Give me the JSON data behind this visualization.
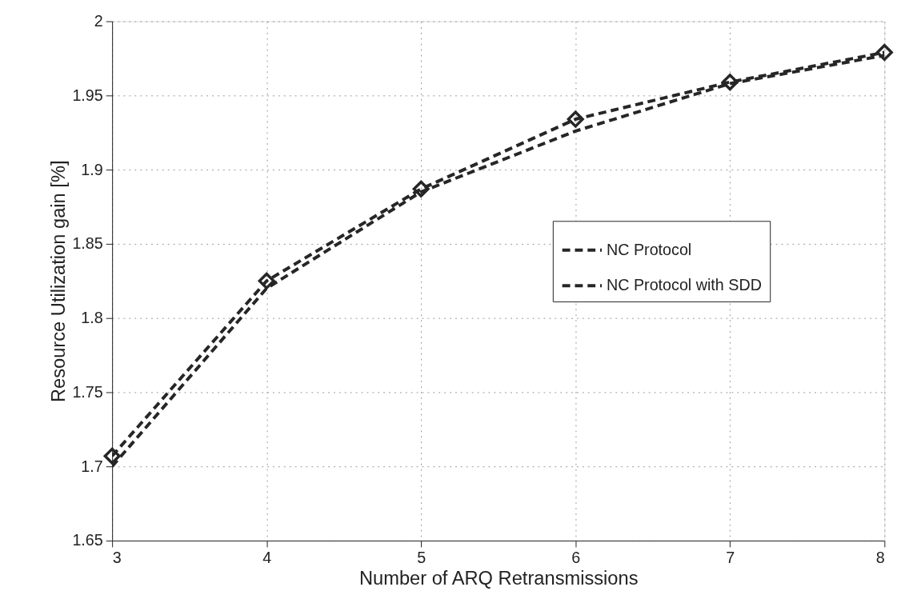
{
  "chart_data": {
    "type": "line",
    "xlabel": "Number of ARQ Retransmissions",
    "ylabel": "Resource Utilization gain [%]",
    "x": [
      3,
      4,
      5,
      6,
      7,
      8
    ],
    "series": [
      {
        "name": "NC Protocol",
        "color": "#262626",
        "values": [
          1.7,
          1.82,
          1.885,
          1.926,
          1.958,
          1.977
        ],
        "marker": "none",
        "line_style": "dashed"
      },
      {
        "name": "NC Protocol with SDD",
        "color": "#262626",
        "values": [
          1.707,
          1.825,
          1.887,
          1.934,
          1.959,
          1.979
        ],
        "marker": "diamond",
        "line_style": "dashed"
      }
    ],
    "xlim": [
      3,
      8
    ],
    "xticks": [
      3,
      4,
      5,
      6,
      7,
      8
    ],
    "ylim": [
      1.65,
      2
    ],
    "yticks": [
      1.65,
      1.7,
      1.75,
      1.8,
      1.85,
      1.9,
      1.95,
      2
    ],
    "grid": true,
    "legend": "right"
  }
}
